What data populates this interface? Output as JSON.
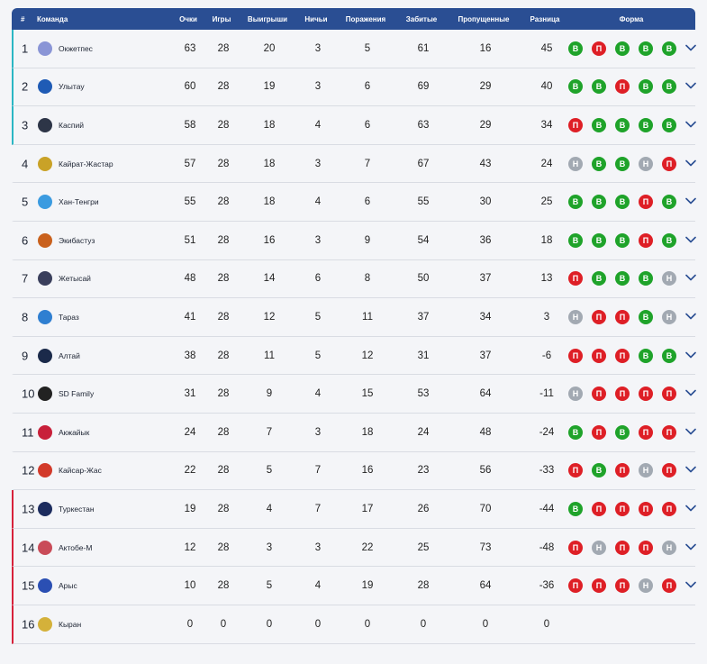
{
  "header": {
    "pos": "#",
    "team": "Команда",
    "points": "Очки",
    "played": "Игры",
    "won": "Выигрыши",
    "drawn": "Ничьи",
    "lost": "Поражения",
    "scored": "Забитые",
    "conceded": "Пропущенные",
    "diff": "Разница",
    "form": "Форма"
  },
  "colors": {
    "header_bg": "#2a4e93",
    "zone_top": "#2bb6c4",
    "zone_bottom": "#d7213a",
    "win": "#1fa32a",
    "loss": "#de1f26",
    "draw": "#a2a9b2"
  },
  "form_letters": {
    "W": "В",
    "L": "П",
    "D": "Н"
  },
  "rows": [
    {
      "pos": "1",
      "team": "Окжетпес",
      "points": "63",
      "played": "28",
      "won": "20",
      "drawn": "3",
      "lost": "5",
      "scored": "61",
      "conceded": "16",
      "diff": "45",
      "zone": "top",
      "logo": "#8a95d6",
      "form": [
        "W",
        "L",
        "W",
        "W",
        "W"
      ]
    },
    {
      "pos": "2",
      "team": "Улытау",
      "points": "60",
      "played": "28",
      "won": "19",
      "drawn": "3",
      "lost": "6",
      "scored": "69",
      "conceded": "29",
      "diff": "40",
      "zone": "top",
      "logo": "#1f5bb5",
      "form": [
        "W",
        "W",
        "L",
        "W",
        "W"
      ]
    },
    {
      "pos": "3",
      "team": "Каспий",
      "points": "58",
      "played": "28",
      "won": "18",
      "drawn": "4",
      "lost": "6",
      "scored": "63",
      "conceded": "29",
      "diff": "34",
      "zone": "top",
      "logo": "#2d3547",
      "form": [
        "L",
        "W",
        "W",
        "W",
        "W"
      ]
    },
    {
      "pos": "4",
      "team": "Кайрат-Жастар",
      "points": "57",
      "played": "28",
      "won": "18",
      "drawn": "3",
      "lost": "7",
      "scored": "67",
      "conceded": "43",
      "diff": "24",
      "zone": "none",
      "logo": "#c9a227",
      "form": [
        "D",
        "W",
        "W",
        "D",
        "L"
      ]
    },
    {
      "pos": "5",
      "team": "Хан-Тенгри",
      "points": "55",
      "played": "28",
      "won": "18",
      "drawn": "4",
      "lost": "6",
      "scored": "55",
      "conceded": "30",
      "diff": "25",
      "zone": "none",
      "logo": "#3b9be0",
      "form": [
        "W",
        "W",
        "W",
        "L",
        "W"
      ]
    },
    {
      "pos": "6",
      "team": "Экибастуз",
      "points": "51",
      "played": "28",
      "won": "16",
      "drawn": "3",
      "lost": "9",
      "scored": "54",
      "conceded": "36",
      "diff": "18",
      "zone": "none",
      "logo": "#c9611d",
      "form": [
        "W",
        "W",
        "W",
        "L",
        "W"
      ]
    },
    {
      "pos": "7",
      "team": "Жетысай",
      "points": "48",
      "played": "28",
      "won": "14",
      "drawn": "6",
      "lost": "8",
      "scored": "50",
      "conceded": "37",
      "diff": "13",
      "zone": "none",
      "logo": "#3a3f5c",
      "form": [
        "L",
        "W",
        "W",
        "W",
        "D"
      ]
    },
    {
      "pos": "8",
      "team": "Тараз",
      "points": "41",
      "played": "28",
      "won": "12",
      "drawn": "5",
      "lost": "11",
      "scored": "37",
      "conceded": "34",
      "diff": "3",
      "zone": "none",
      "logo": "#2f7fd1",
      "form": [
        "D",
        "L",
        "L",
        "W",
        "D"
      ]
    },
    {
      "pos": "9",
      "team": "Алтай",
      "points": "38",
      "played": "28",
      "won": "11",
      "drawn": "5",
      "lost": "12",
      "scored": "31",
      "conceded": "37",
      "diff": "-6",
      "zone": "none",
      "logo": "#1b2a4a",
      "form": [
        "L",
        "L",
        "L",
        "W",
        "W"
      ]
    },
    {
      "pos": "10",
      "team": "SD Family",
      "points": "31",
      "played": "28",
      "won": "9",
      "drawn": "4",
      "lost": "15",
      "scored": "53",
      "conceded": "64",
      "diff": "-11",
      "zone": "none",
      "logo": "#222222",
      "form": [
        "D",
        "L",
        "L",
        "L",
        "L"
      ]
    },
    {
      "pos": "11",
      "team": "Акжайык",
      "points": "24",
      "played": "28",
      "won": "7",
      "drawn": "3",
      "lost": "18",
      "scored": "24",
      "conceded": "48",
      "diff": "-24",
      "zone": "none",
      "logo": "#c8203a",
      "form": [
        "W",
        "L",
        "W",
        "L",
        "L"
      ]
    },
    {
      "pos": "12",
      "team": "Кайсар-Жас",
      "points": "22",
      "played": "28",
      "won": "5",
      "drawn": "7",
      "lost": "16",
      "scored": "23",
      "conceded": "56",
      "diff": "-33",
      "zone": "none",
      "logo": "#d23a2a",
      "form": [
        "L",
        "W",
        "L",
        "D",
        "L"
      ]
    },
    {
      "pos": "13",
      "team": "Туркестан",
      "points": "19",
      "played": "28",
      "won": "4",
      "drawn": "7",
      "lost": "17",
      "scored": "26",
      "conceded": "70",
      "diff": "-44",
      "zone": "bottom",
      "logo": "#1c2c5e",
      "form": [
        "W",
        "L",
        "L",
        "L",
        "L"
      ]
    },
    {
      "pos": "14",
      "team": "Актобе-М",
      "points": "12",
      "played": "28",
      "won": "3",
      "drawn": "3",
      "lost": "22",
      "scored": "25",
      "conceded": "73",
      "diff": "-48",
      "zone": "bottom",
      "logo": "#c94b58",
      "form": [
        "L",
        "D",
        "L",
        "L",
        "D"
      ]
    },
    {
      "pos": "15",
      "team": "Арыс",
      "points": "10",
      "played": "28",
      "won": "5",
      "drawn": "4",
      "lost": "19",
      "scored": "28",
      "conceded": "64",
      "diff": "-36",
      "zone": "bottom",
      "logo": "#2b4fb3",
      "form": [
        "L",
        "L",
        "L",
        "D",
        "L"
      ]
    },
    {
      "pos": "16",
      "team": "Кыран",
      "points": "0",
      "played": "0",
      "won": "0",
      "drawn": "0",
      "lost": "0",
      "scored": "0",
      "conceded": "0",
      "diff": "0",
      "zone": "bottom",
      "logo": "#d4b13a",
      "form": []
    }
  ]
}
